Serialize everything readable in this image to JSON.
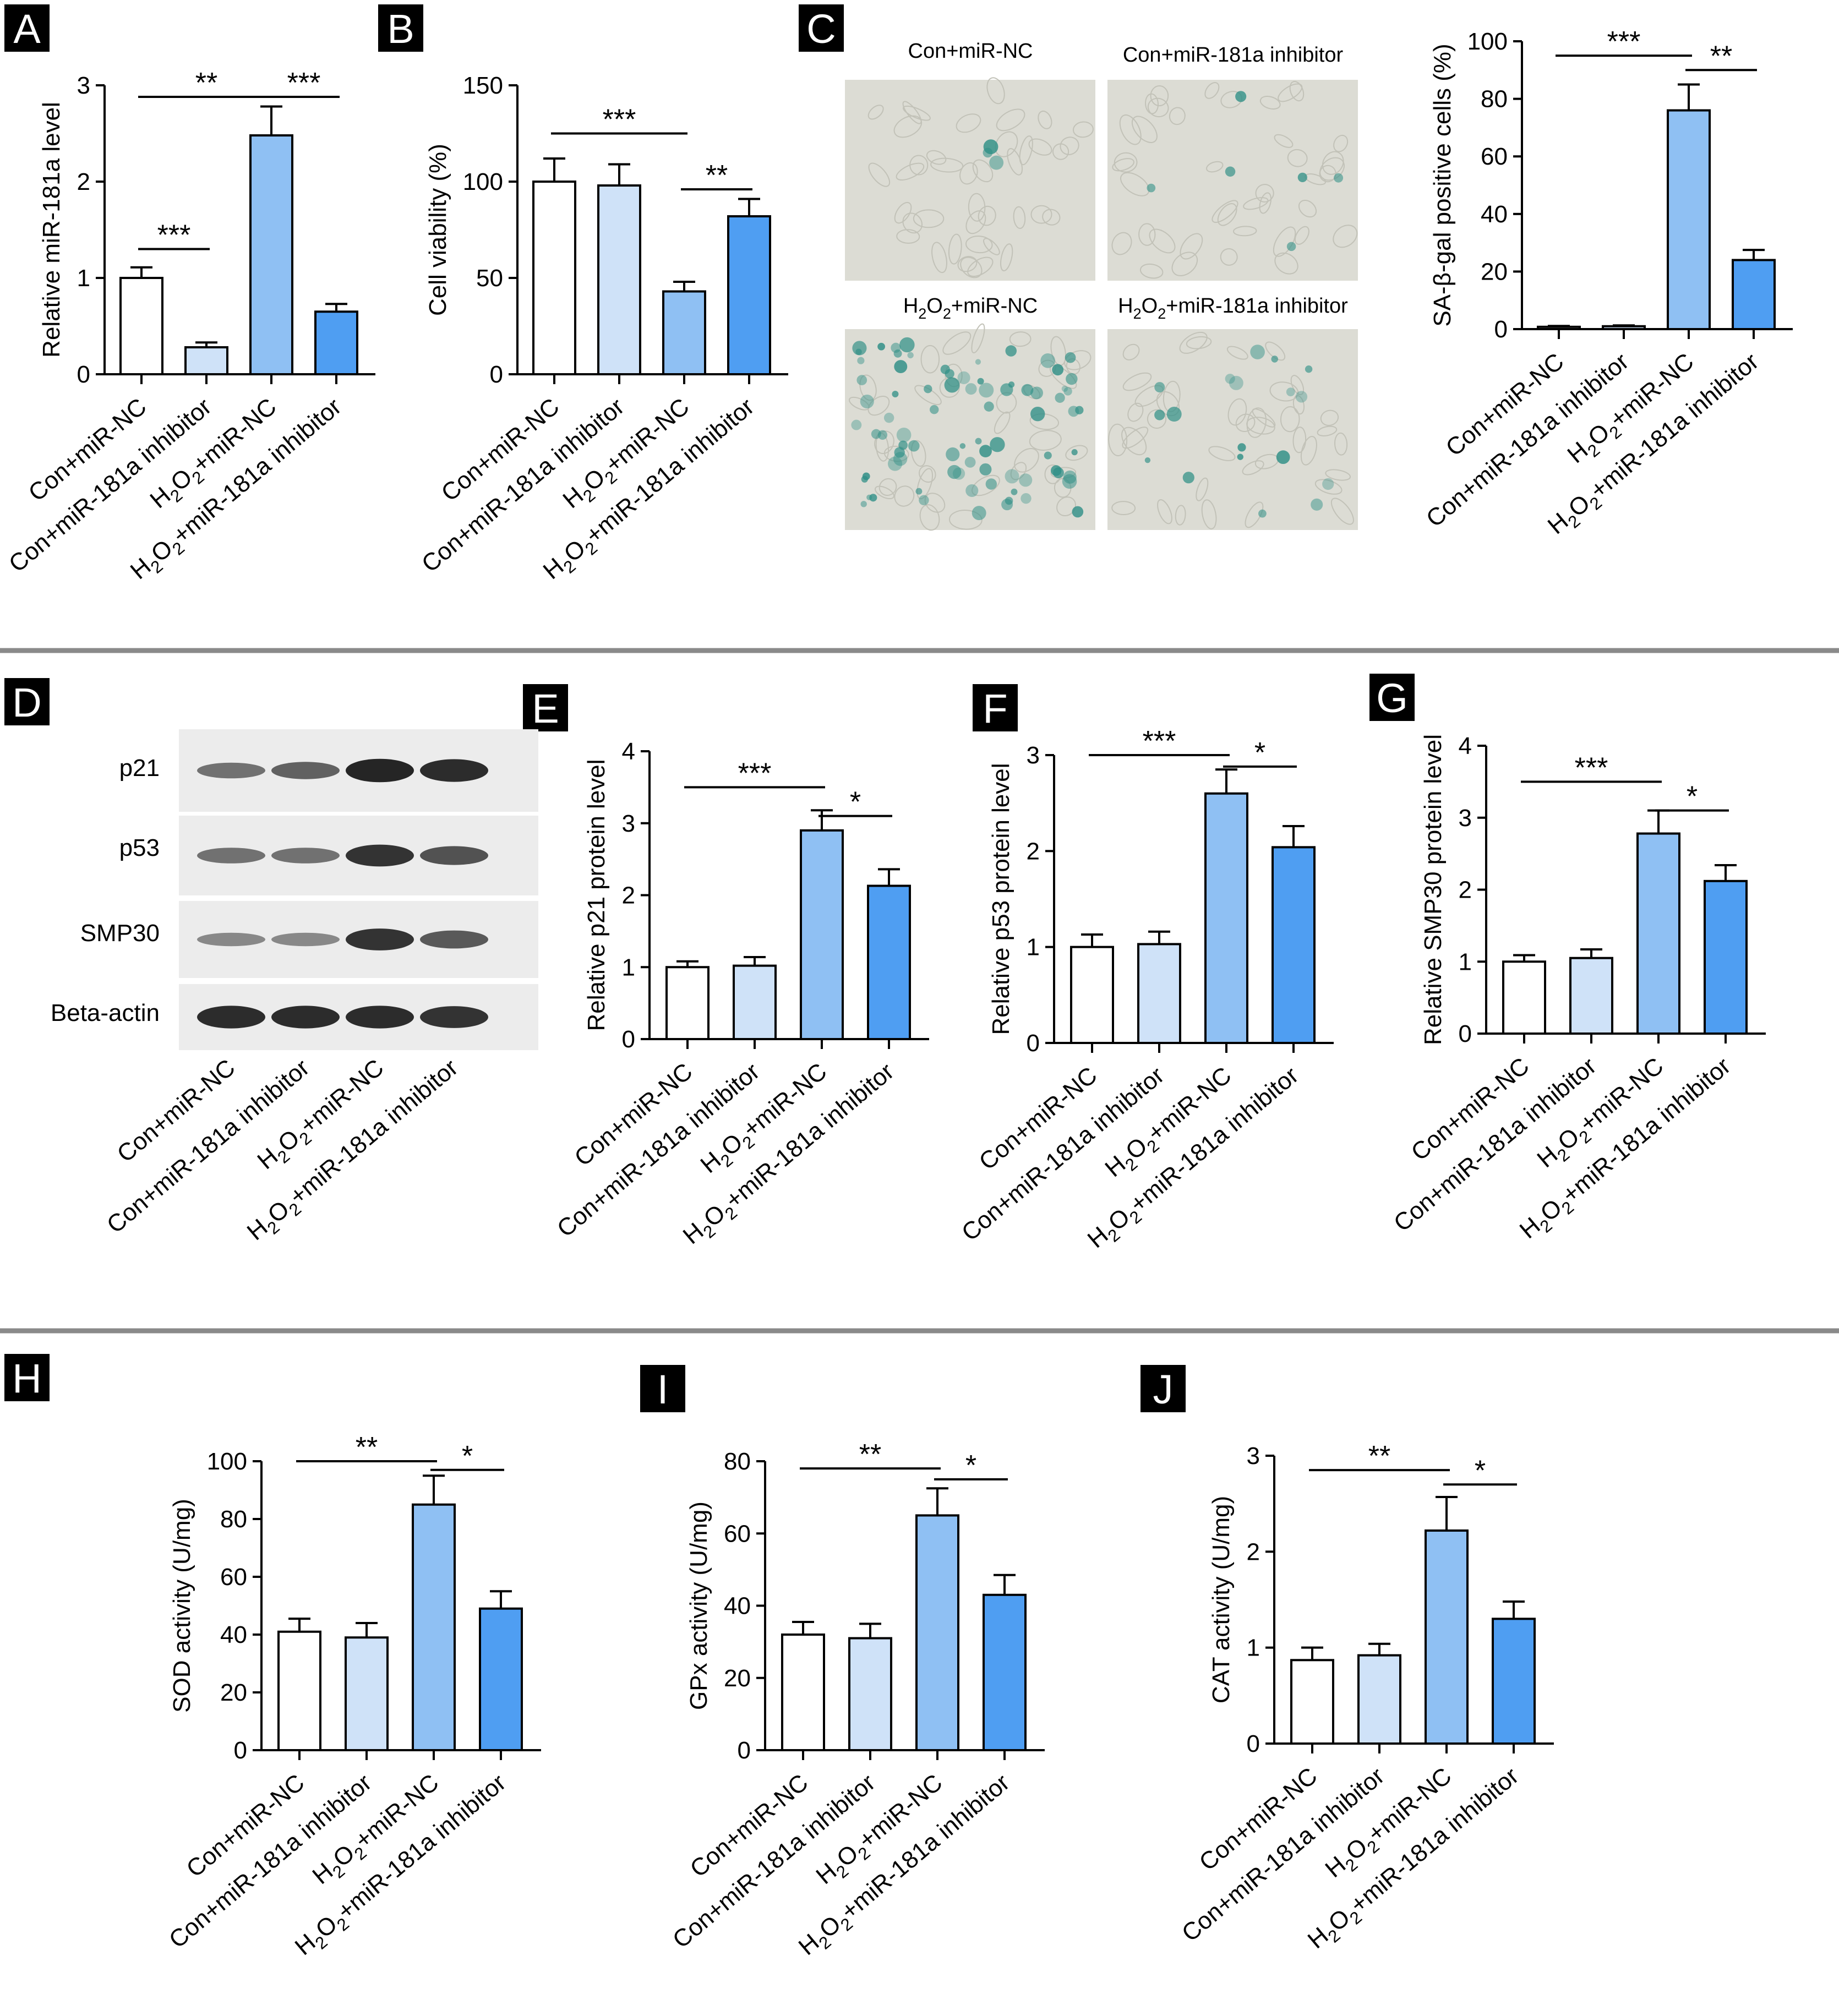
{
  "colors": {
    "white_bar": "#ffffff",
    "light_blue": "#cfe2f8",
    "mid_blue": "#8fc0f3",
    "blue": "#4f9ef2",
    "axis": "#000000",
    "divider": "#8a8a8a",
    "label_box": "#000000",
    "label_text": "#ffffff",
    "blot_bg": "#ececec",
    "stain": "#2f8f86"
  },
  "groups": {
    "con_nc": "Con+miR-NC",
    "con_inh": "Con+miR-181a inhibitor",
    "h2o2_prefix": "H",
    "h2o2_sub": "2",
    "h2o2_mid": "O",
    "h2o2_nc_suffix": "+miR-NC",
    "h2o2_inh_suffix": "+miR-181a inhibitor"
  },
  "panel_letters": [
    "A",
    "B",
    "C",
    "D",
    "E",
    "F",
    "G",
    "H",
    "I",
    "J"
  ],
  "micrograph": {
    "labels": [
      {
        "text": "Con+miR-NC",
        "h2o2": false
      },
      {
        "text": "Con+miR-181a  inhibitor",
        "h2o2": false
      },
      {
        "text": "+miR-NC",
        "h2o2": true
      },
      {
        "text": "+miR-181a  inhibitor",
        "h2o2": true
      }
    ]
  },
  "blot": {
    "bands": [
      "p21",
      "p53",
      "SMP30",
      "Beta-actin"
    ]
  },
  "chart_data": [
    {
      "id": "A",
      "type": "bar",
      "ylabel": "Relative miR-181a level",
      "ylim": [
        0,
        3
      ],
      "ticks": [
        0,
        1,
        2,
        3
      ],
      "values": [
        1.0,
        0.28,
        2.48,
        0.65
      ],
      "errors": [
        0.11,
        0.05,
        0.3,
        0.08
      ],
      "sig": [
        {
          "from": 0,
          "to": 2,
          "label": "**",
          "y": 2.88
        },
        {
          "from": 2,
          "to": 3,
          "label": "***",
          "y": 2.88
        },
        {
          "from": 0,
          "to": 1,
          "label": "***",
          "y": 1.3
        }
      ]
    },
    {
      "id": "B",
      "type": "bar",
      "ylabel": "Cell viability (%)",
      "ylim": [
        0,
        150
      ],
      "ticks": [
        0,
        50,
        100,
        150
      ],
      "values": [
        100,
        98,
        43,
        82
      ],
      "errors": [
        12,
        11,
        5,
        9
      ],
      "sig": [
        {
          "from": 0,
          "to": 2,
          "label": "***",
          "y": 125
        },
        {
          "from": 2,
          "to": 3,
          "label": "**",
          "y": 96
        }
      ]
    },
    {
      "id": "C",
      "type": "bar",
      "ylabel": "SA-β-gal positive cells (%)",
      "ylim": [
        0,
        100
      ],
      "ticks": [
        0,
        20,
        40,
        60,
        80,
        100
      ],
      "values": [
        0.8,
        1.0,
        76,
        24
      ],
      "errors": [
        0.3,
        0.3,
        9,
        3.5
      ],
      "sig": [
        {
          "from": 0,
          "to": 2,
          "label": "***",
          "y": 95
        },
        {
          "from": 2,
          "to": 3,
          "label": "**",
          "y": 90
        }
      ]
    },
    {
      "id": "E",
      "type": "bar",
      "ylabel": "Relative p21 protein level",
      "ylim": [
        0,
        4
      ],
      "ticks": [
        0,
        1,
        2,
        3,
        4
      ],
      "values": [
        1.0,
        1.02,
        2.9,
        2.13
      ],
      "errors": [
        0.08,
        0.12,
        0.28,
        0.23
      ],
      "sig": [
        {
          "from": 0,
          "to": 2,
          "label": "***",
          "y": 3.5
        },
        {
          "from": 2,
          "to": 3,
          "label": "*",
          "y": 3.1
        }
      ]
    },
    {
      "id": "F",
      "type": "bar",
      "ylabel": "Relative p53 protein level",
      "ylim": [
        0,
        3
      ],
      "ticks": [
        0,
        1,
        2,
        3
      ],
      "values": [
        1.0,
        1.03,
        2.6,
        2.04
      ],
      "errors": [
        0.13,
        0.13,
        0.25,
        0.22
      ],
      "sig": [
        {
          "from": 0,
          "to": 2,
          "label": "***",
          "y": 3.0
        },
        {
          "from": 2,
          "to": 3,
          "label": "*",
          "y": 2.88
        }
      ]
    },
    {
      "id": "G",
      "type": "bar",
      "ylabel": "Relative SMP30 protein level",
      "ylim": [
        0,
        4
      ],
      "ticks": [
        0,
        1,
        2,
        3,
        4
      ],
      "values": [
        1.0,
        1.05,
        2.78,
        2.12
      ],
      "errors": [
        0.09,
        0.12,
        0.32,
        0.22
      ],
      "sig": [
        {
          "from": 0,
          "to": 2,
          "label": "***",
          "y": 3.5
        },
        {
          "from": 2,
          "to": 3,
          "label": "*",
          "y": 3.1
        }
      ]
    },
    {
      "id": "H",
      "type": "bar",
      "ylabel": "SOD activity (U/mg)",
      "ylim": [
        0,
        100
      ],
      "ticks": [
        0,
        20,
        40,
        60,
        80,
        100
      ],
      "values": [
        41,
        39,
        85,
        49
      ],
      "errors": [
        4.5,
        5,
        10,
        6
      ],
      "sig": [
        {
          "from": 0,
          "to": 2,
          "label": "**",
          "y": 100
        },
        {
          "from": 2,
          "to": 3,
          "label": "*",
          "y": 97
        }
      ]
    },
    {
      "id": "I",
      "type": "bar",
      "ylabel": "GPx activity (U/mg)",
      "ylim": [
        0,
        80
      ],
      "ticks": [
        0,
        20,
        40,
        60,
        80
      ],
      "values": [
        32,
        31,
        65,
        43
      ],
      "errors": [
        3.5,
        4,
        7.5,
        5.5
      ],
      "sig": [
        {
          "from": 0,
          "to": 2,
          "label": "**",
          "y": 78
        },
        {
          "from": 2,
          "to": 3,
          "label": "*",
          "y": 75
        }
      ]
    },
    {
      "id": "J",
      "type": "bar",
      "ylabel": "CAT activity (U/mg)",
      "ylim": [
        0,
        3
      ],
      "ticks": [
        0,
        1,
        2,
        3
      ],
      "values": [
        0.87,
        0.92,
        2.22,
        1.3
      ],
      "errors": [
        0.13,
        0.12,
        0.35,
        0.18
      ],
      "sig": [
        {
          "from": 0,
          "to": 2,
          "label": "**",
          "y": 2.85
        },
        {
          "from": 2,
          "to": 3,
          "label": "*",
          "y": 2.7
        }
      ]
    }
  ]
}
